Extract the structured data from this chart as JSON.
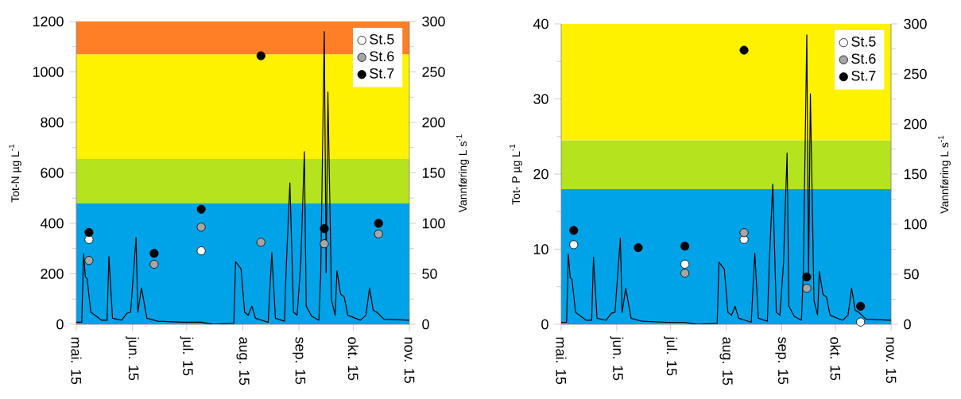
{
  "chart_data": [
    {
      "type": "scatter",
      "ylabel": "Tot-N µg L$^{-1}$",
      "y2label": "Vannføring L s$^{-1}$",
      "x": [
        "2015-05-08",
        "2015-06-13",
        "2015-07-09",
        "2015-08-11",
        "2015-09-15",
        "2015-10-15"
      ],
      "series": [
        {
          "name": "St.5",
          "color": "#ffffff",
          "marker": "circle",
          "values": [
            336,
            null,
            291,
            null,
            null,
            null
          ]
        },
        {
          "name": "St.6",
          "color": "#a6a6a6",
          "marker": "circle",
          "values": [
            253,
            238,
            385,
            325,
            319,
            358
          ]
        },
        {
          "name": "St.7",
          "color": "#000000",
          "marker": "circle",
          "values": [
            364,
            281,
            456,
            1064,
            379,
            400
          ]
        },
        {
          "type": "line",
          "axis": "y2",
          "color": "#000000",
          "marker": "none",
          "x": [
            "2015-05-01",
            "2015-05-04",
            "2015-05-05",
            "2015-05-06",
            "2015-05-07",
            "2015-05-09",
            "2015-05-12",
            "2015-05-15",
            "2015-05-18",
            "2015-05-19",
            "2015-05-21",
            "2015-05-26",
            "2015-05-29",
            "2015-05-31",
            "2015-06-03",
            "2015-06-04",
            "2015-06-06",
            "2015-06-09",
            "2015-06-15",
            "2015-06-29",
            "2015-07-09",
            "2015-07-16",
            "2015-07-27",
            "2015-07-28",
            "2015-07-31",
            "2015-08-02",
            "2015-08-04",
            "2015-08-06",
            "2015-08-08",
            "2015-08-15",
            "2015-08-17",
            "2015-08-19",
            "2015-08-24",
            "2015-08-25",
            "2015-08-27",
            "2015-08-29",
            "2015-08-31",
            "2015-09-02",
            "2015-09-04",
            "2015-09-05",
            "2015-09-08",
            "2015-09-12",
            "2015-09-13",
            "2015-09-15",
            "2015-09-16",
            "2015-09-17",
            "2015-09-19",
            "2015-09-21",
            "2015-09-22",
            "2015-09-24",
            "2015-09-26",
            "2015-09-28",
            "2015-10-05",
            "2015-10-08",
            "2015-10-10",
            "2015-10-12",
            "2015-10-14",
            "2015-10-18",
            "2015-11-01"
          ],
          "values": [
            2,
            2,
            70,
            47,
            45,
            12,
            8,
            4,
            4,
            67,
            6,
            4,
            11,
            12,
            86,
            12,
            36,
            6,
            3,
            2,
            2,
            0,
            1,
            62,
            55,
            12,
            9,
            18,
            6,
            2,
            71,
            6,
            3,
            58,
            140,
            12,
            9,
            61,
            171,
            18,
            8,
            4,
            48,
            290,
            51,
            230,
            24,
            9,
            53,
            30,
            27,
            9,
            4,
            9,
            36,
            14,
            12,
            5,
            4
          ]
        }
      ],
      "bands": [
        {
          "axis": "y",
          "from": 0,
          "to": 480,
          "color": "#00a2e8"
        },
        {
          "axis": "y",
          "from": 480,
          "to": 655,
          "color": "#b5e31e"
        },
        {
          "axis": "y",
          "from": 655,
          "to": 1070,
          "color": "#fff200"
        },
        {
          "axis": "y",
          "from": 1070,
          "to": 1200,
          "color": "#ff7f27"
        }
      ],
      "xlim": [
        "2015-05-01",
        "2015-11-01"
      ],
      "xticks": [
        {
          "value": "2015-05-01",
          "label": "mai. 15"
        },
        {
          "value": "2015-06-01",
          "label": "jun. 15"
        },
        {
          "value": "2015-07-01",
          "label": "jul. 15"
        },
        {
          "value": "2015-08-01",
          "label": "aug. 15"
        },
        {
          "value": "2015-09-01",
          "label": "sep. 15"
        },
        {
          "value": "2015-10-01",
          "label": "okt. 15"
        },
        {
          "value": "2015-11-01",
          "label": "nov. 15"
        }
      ],
      "ylim": [
        0,
        1200
      ],
      "yticks": [
        0,
        200,
        400,
        600,
        800,
        1000,
        1200
      ],
      "y2lim": [
        0,
        300
      ],
      "y2ticks": [
        0,
        50,
        100,
        150,
        200,
        250,
        300
      ],
      "legend": "top right",
      "grid": false
    },
    {
      "type": "scatter",
      "ylabel": "Tot- P µg L$^{-1}$",
      "y2label": "Vannføring L s$^{-1}$",
      "x": [
        "2015-05-08",
        "2015-06-13",
        "2015-07-09",
        "2015-08-11",
        "2015-09-15",
        "2015-10-15"
      ],
      "series": [
        {
          "name": "St.5",
          "color": "#ffffff",
          "marker": "circle",
          "values": [
            10.6,
            null,
            8.0,
            11.3,
            null,
            0.3
          ]
        },
        {
          "name": "St.6",
          "color": "#a6a6a6",
          "marker": "circle",
          "values": [
            null,
            null,
            6.8,
            12.2,
            4.8,
            null
          ]
        },
        {
          "name": "St.7",
          "color": "#000000",
          "marker": "circle",
          "values": [
            12.5,
            10.2,
            10.4,
            36.5,
            6.3,
            2.4
          ]
        },
        {
          "type": "line",
          "axis": "y2",
          "color": "#000000",
          "marker": "none",
          "x": [
            "2015-05-01",
            "2015-05-04",
            "2015-05-05",
            "2015-05-06",
            "2015-05-07",
            "2015-05-09",
            "2015-05-12",
            "2015-05-15",
            "2015-05-18",
            "2015-05-19",
            "2015-05-21",
            "2015-05-26",
            "2015-05-29",
            "2015-05-31",
            "2015-06-03",
            "2015-06-04",
            "2015-06-06",
            "2015-06-09",
            "2015-06-15",
            "2015-06-29",
            "2015-07-09",
            "2015-07-16",
            "2015-07-27",
            "2015-07-28",
            "2015-07-31",
            "2015-08-02",
            "2015-08-04",
            "2015-08-06",
            "2015-08-08",
            "2015-08-15",
            "2015-08-17",
            "2015-08-19",
            "2015-08-24",
            "2015-08-25",
            "2015-08-27",
            "2015-08-29",
            "2015-08-31",
            "2015-09-02",
            "2015-09-04",
            "2015-09-05",
            "2015-09-08",
            "2015-09-12",
            "2015-09-13",
            "2015-09-15",
            "2015-09-16",
            "2015-09-17",
            "2015-09-19",
            "2015-09-21",
            "2015-09-22",
            "2015-09-24",
            "2015-09-26",
            "2015-09-28",
            "2015-10-05",
            "2015-10-08",
            "2015-10-10",
            "2015-10-12",
            "2015-10-14",
            "2015-10-18",
            "2015-11-01"
          ],
          "values": [
            2,
            2,
            70,
            47,
            45,
            12,
            8,
            4,
            4,
            67,
            6,
            4,
            11,
            12,
            86,
            12,
            36,
            6,
            3,
            2,
            2,
            0,
            1,
            62,
            55,
            12,
            9,
            18,
            6,
            2,
            71,
            6,
            3,
            58,
            140,
            12,
            9,
            61,
            171,
            18,
            8,
            4,
            48,
            289,
            51,
            230,
            24,
            9,
            53,
            30,
            27,
            9,
            4,
            9,
            36,
            14,
            12,
            5,
            4
          ]
        }
      ],
      "bands": [
        {
          "axis": "y",
          "from": 0,
          "to": 18,
          "color": "#00a2e8"
        },
        {
          "axis": "y",
          "from": 18,
          "to": 24.5,
          "color": "#b5e31e"
        },
        {
          "axis": "y",
          "from": 24.5,
          "to": 40,
          "color": "#fff200"
        }
      ],
      "xlim": [
        "2015-05-01",
        "2015-11-01"
      ],
      "xticks": [
        {
          "value": "2015-05-01",
          "label": "mai. 15"
        },
        {
          "value": "2015-06-01",
          "label": "jun. 15"
        },
        {
          "value": "2015-07-01",
          "label": "jul. 15"
        },
        {
          "value": "2015-08-01",
          "label": "aug. 15"
        },
        {
          "value": "2015-09-01",
          "label": "sep. 15"
        },
        {
          "value": "2015-10-01",
          "label": "okt. 15"
        },
        {
          "value": "2015-11-01",
          "label": "nov. 15"
        }
      ],
      "ylim": [
        0,
        40
      ],
      "yticks": [
        0,
        10,
        20,
        30,
        40
      ],
      "y2lim": [
        0,
        300
      ],
      "y2ticks": [
        0,
        50,
        100,
        150,
        200,
        250,
        300
      ],
      "legend": "top right",
      "grid": false
    }
  ]
}
